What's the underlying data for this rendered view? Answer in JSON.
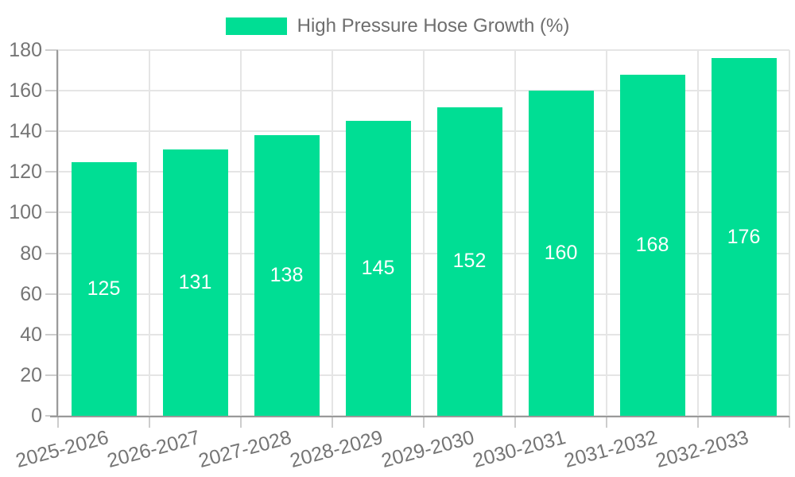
{
  "chart_data": {
    "type": "bar",
    "title": "",
    "legend": {
      "label": "High Pressure Hose Growth (%)",
      "position": "top"
    },
    "categories": [
      "2025-2026",
      "2026-2027",
      "2027-2028",
      "2028-2029",
      "2029-2030",
      "2030-2031",
      "2031-2032",
      "2032-2033"
    ],
    "values": [
      125,
      131,
      138,
      145,
      152,
      160,
      168,
      176
    ],
    "xlabel": "",
    "ylabel": "",
    "ylim": [
      0,
      180
    ],
    "ytick_step": 20,
    "ytick_labels": [
      "0",
      "20",
      "40",
      "60",
      "80",
      "100",
      "120",
      "140",
      "160",
      "180"
    ],
    "grid": true,
    "colors": {
      "bar": "#00DE94",
      "bar_value_label": "#FFFFFF",
      "grid_line": "#E5E5E5",
      "tick_mark": "#CDCDCD",
      "axis_line": "#9A9A9A",
      "axis_text": "#757575",
      "legend_text": "#6E6E6E",
      "background": "#FFFFFF"
    }
  }
}
